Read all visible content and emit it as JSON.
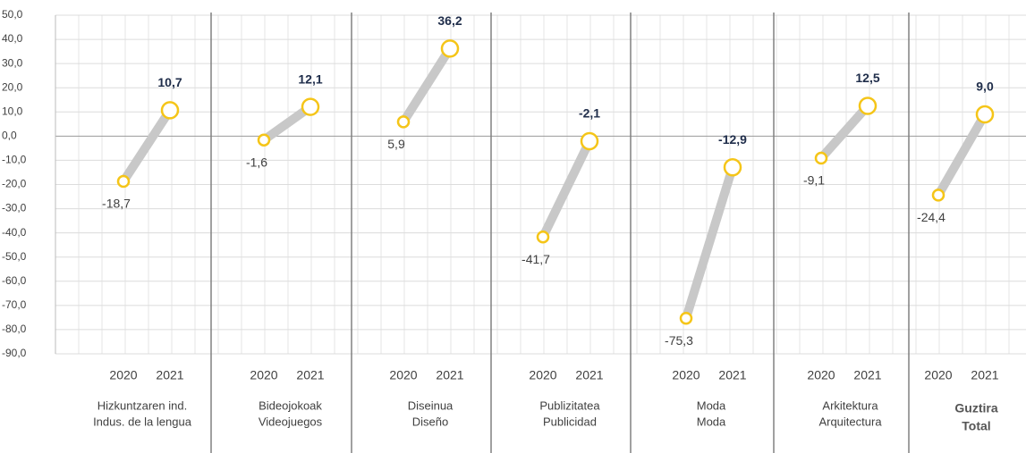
{
  "chart_data": {
    "type": "slope",
    "categories": [
      "2020",
      "2021"
    ],
    "ylim": [
      -90,
      50
    ],
    "yticks": [
      {
        "value": 50,
        "label": "50,0"
      },
      {
        "value": 40,
        "label": "40,0"
      },
      {
        "value": 30,
        "label": "30,0"
      },
      {
        "value": 20,
        "label": "20,0"
      },
      {
        "value": 10,
        "label": "10,0"
      },
      {
        "value": 0,
        "label": "0,0"
      },
      {
        "value": -10,
        "label": "-10,0"
      },
      {
        "value": -20,
        "label": "-20,0"
      },
      {
        "value": -30,
        "label": "-30,0"
      },
      {
        "value": -40,
        "label": "-40,0"
      },
      {
        "value": -50,
        "label": "-50,0"
      },
      {
        "value": -60,
        "label": "-60,0"
      },
      {
        "value": -70,
        "label": "-70,0"
      },
      {
        "value": -80,
        "label": "-80,0"
      },
      {
        "value": -90,
        "label": "-90,0"
      }
    ],
    "grid": true,
    "line_color": "#c8c8c8",
    "marker_color": "#f5c518",
    "groups": [
      {
        "label": [
          "Hizkuntzaren ind.",
          "Indus. de la lengua"
        ],
        "values": [
          -18.7,
          10.7
        ],
        "value_labels": [
          "-18,7",
          "10,7"
        ]
      },
      {
        "label": [
          "Bideojokoak",
          "Videojuegos"
        ],
        "values": [
          -1.6,
          12.1
        ],
        "value_labels": [
          "-1,6",
          "12,1"
        ]
      },
      {
        "label": [
          "Diseinua",
          "Diseño"
        ],
        "values": [
          5.9,
          36.2
        ],
        "value_labels": [
          "5,9",
          "36,2"
        ]
      },
      {
        "label": [
          "Publizitatea",
          "Publicidad"
        ],
        "values": [
          -41.7,
          -2.1
        ],
        "value_labels": [
          "-41,7",
          "-2,1"
        ]
      },
      {
        "label": [
          "Moda",
          "Moda"
        ],
        "values": [
          -75.3,
          -12.9
        ],
        "value_labels": [
          "-75,3",
          "-12,9"
        ]
      },
      {
        "label": [
          "Arkitektura",
          "Arquitectura"
        ],
        "values": [
          -9.1,
          12.5
        ],
        "value_labels": [
          "-9,1",
          "12,5"
        ]
      },
      {
        "label": [
          "Guztira",
          "Total"
        ],
        "values": [
          -24.4,
          9.0
        ],
        "value_labels": [
          "-24,4",
          "9,0"
        ],
        "bold": true
      }
    ]
  }
}
